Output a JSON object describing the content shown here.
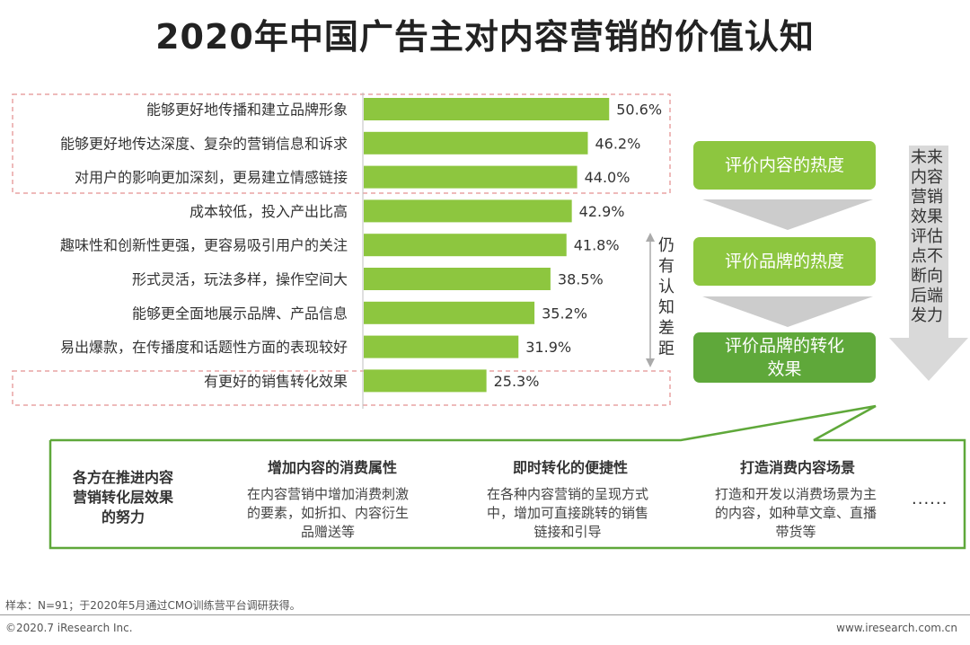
{
  "title": "2020年中国广告主对内容营销的价值认知",
  "chart_data": {
    "type": "bar",
    "orientation": "horizontal",
    "categories": [
      "能够更好地传播和建立品牌形象",
      "能够更好地传达深度、复杂的营销信息和诉求",
      "对用户的影响更加深刻，更易建立情感链接",
      "成本较低，投入产出比高",
      "趣味性和创新性更强，更容易吸引用户的关注",
      "形式灵活，玩法多样，操作空间大",
      "能够更全面地展示品牌、产品信息",
      "易出爆款，在传播度和话题性方面的表现较好",
      "有更好的销售转化效果"
    ],
    "values": [
      50.6,
      46.2,
      44.0,
      42.9,
      41.8,
      38.5,
      35.2,
      31.9,
      25.3
    ],
    "value_labels": [
      "50.6%",
      "46.2%",
      "44.0%",
      "42.9%",
      "41.8%",
      "38.5%",
      "35.2%",
      "31.9%",
      "25.3%"
    ],
    "xlim": [
      0,
      100
    ],
    "bar_color": "#8dc63f",
    "highlight_box_color": "#e8a3a3",
    "highlight_groups": [
      [
        0,
        2
      ],
      [
        8,
        8
      ]
    ]
  },
  "gap_label": "仍有认知差距",
  "flow": {
    "steps": [
      "评价内容的热度",
      "评价品牌的热度",
      "评价品牌的转化效果"
    ],
    "side_label": "未来内容营销效果评估点不断向后端发力",
    "step_color": "#8dc63f",
    "last_step_color": "#5fa83a",
    "arrow_color": "#cccccc"
  },
  "callout": {
    "effort_label": "各方在推进内容营销转化层效果的努力",
    "columns": [
      {
        "title": "增加内容的消费属性",
        "body": "在内容营销中增加消费刺激的要素，如折扣、内容衍生品赠送等"
      },
      {
        "title": "即时转化的便捷性",
        "body": "在各种内容营销的呈现方式中，增加可直接跳转的销售链接和引导"
      },
      {
        "title": "打造消费内容场景",
        "body": "打造和开发以消费场景为主的内容，如种草文章、直播带货等"
      }
    ],
    "more": "......",
    "border_color": "#5fa83a"
  },
  "footer": {
    "sample": "样本：N=91；于2020年5月通过CMO训练营平台调研获得。",
    "copyright": "©2020.7 iResearch Inc.",
    "url": "www.iresearch.com.cn"
  }
}
